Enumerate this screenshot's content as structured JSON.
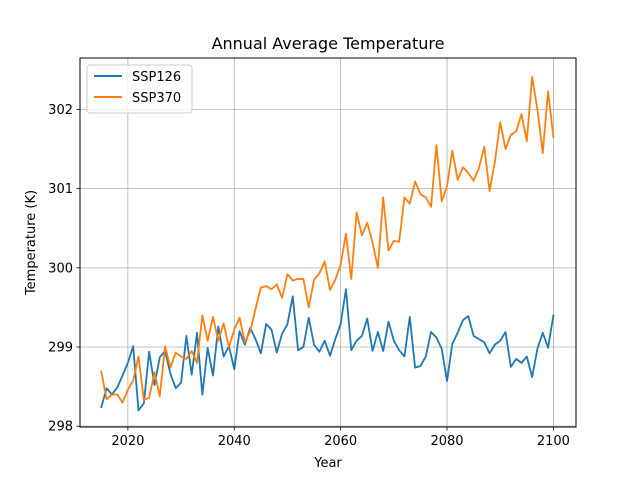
{
  "chart_data": {
    "type": "line",
    "title": "Annual Average Temperature",
    "xlabel": "Year",
    "ylabel": "Temperature (K)",
    "xlim": [
      2011,
      2104.25
    ],
    "ylim": [
      297.99,
      302.65
    ],
    "xticks": [
      2020,
      2040,
      2060,
      2080,
      2100
    ],
    "yticks": [
      298,
      299,
      300,
      301,
      302
    ],
    "grid": true,
    "legend_position": "top-left",
    "x": [
      2015,
      2016,
      2017,
      2018,
      2019,
      2020,
      2021,
      2022,
      2023,
      2024,
      2025,
      2026,
      2027,
      2028,
      2029,
      2030,
      2031,
      2032,
      2033,
      2034,
      2035,
      2036,
      2037,
      2038,
      2039,
      2040,
      2041,
      2042,
      2043,
      2044,
      2045,
      2046,
      2047,
      2048,
      2049,
      2050,
      2051,
      2052,
      2053,
      2054,
      2055,
      2056,
      2057,
      2058,
      2059,
      2060,
      2061,
      2062,
      2063,
      2064,
      2065,
      2066,
      2067,
      2068,
      2069,
      2070,
      2071,
      2072,
      2073,
      2074,
      2075,
      2076,
      2077,
      2078,
      2079,
      2080,
      2081,
      2082,
      2083,
      2084,
      2085,
      2086,
      2087,
      2088,
      2089,
      2090,
      2091,
      2092,
      2093,
      2094,
      2095,
      2096,
      2097,
      2098,
      2099,
      2100
    ],
    "series": [
      {
        "name": "SSP126",
        "color": "#1f77b4",
        "values": [
          298.24,
          298.48,
          298.4,
          298.49,
          298.64,
          298.8,
          299.01,
          298.2,
          298.29,
          298.94,
          298.52,
          298.87,
          298.95,
          298.66,
          298.48,
          298.55,
          299.14,
          298.65,
          299.18,
          298.4,
          298.99,
          298.64,
          299.26,
          298.88,
          299.01,
          298.72,
          299.2,
          299.03,
          299.24,
          299.1,
          298.92,
          299.29,
          299.22,
          298.93,
          299.17,
          299.29,
          299.64,
          298.96,
          299.0,
          299.37,
          299.03,
          298.94,
          299.08,
          298.89,
          299.1,
          299.29,
          299.73,
          298.96,
          299.08,
          299.14,
          299.36,
          298.95,
          299.19,
          298.95,
          299.32,
          299.08,
          298.96,
          298.88,
          299.38,
          298.74,
          298.76,
          298.88,
          299.19,
          299.12,
          298.98,
          298.57,
          299.04,
          299.18,
          299.34,
          299.39,
          299.14,
          299.1,
          299.06,
          298.92,
          299.03,
          299.08,
          299.19,
          298.75,
          298.85,
          298.8,
          298.88,
          298.62,
          298.98,
          299.18,
          298.99,
          299.4
        ]
      },
      {
        "name": "SSP370",
        "color": "#ff7f0e",
        "values": [
          298.69,
          298.34,
          298.4,
          298.4,
          298.3,
          298.46,
          298.58,
          298.88,
          298.33,
          298.36,
          298.68,
          298.38,
          299.01,
          298.74,
          298.93,
          298.88,
          298.85,
          298.95,
          298.8,
          299.4,
          299.08,
          299.38,
          299.08,
          299.3,
          299.0,
          299.22,
          299.37,
          299.06,
          299.2,
          299.48,
          299.75,
          299.77,
          299.73,
          299.79,
          299.62,
          299.92,
          299.84,
          299.86,
          299.86,
          299.5,
          299.85,
          299.93,
          300.08,
          299.72,
          299.85,
          300.04,
          300.43,
          299.86,
          300.7,
          300.41,
          300.57,
          300.32,
          300.0,
          300.89,
          300.22,
          300.34,
          300.33,
          300.89,
          300.81,
          301.09,
          300.93,
          300.89,
          300.77,
          301.55,
          300.84,
          301.03,
          301.48,
          301.11,
          301.27,
          301.2,
          301.1,
          301.26,
          301.53,
          300.97,
          301.34,
          301.84,
          301.5,
          301.68,
          301.72,
          301.94,
          301.6,
          302.41,
          302.0,
          301.45,
          302.23,
          301.65
        ]
      }
    ]
  }
}
